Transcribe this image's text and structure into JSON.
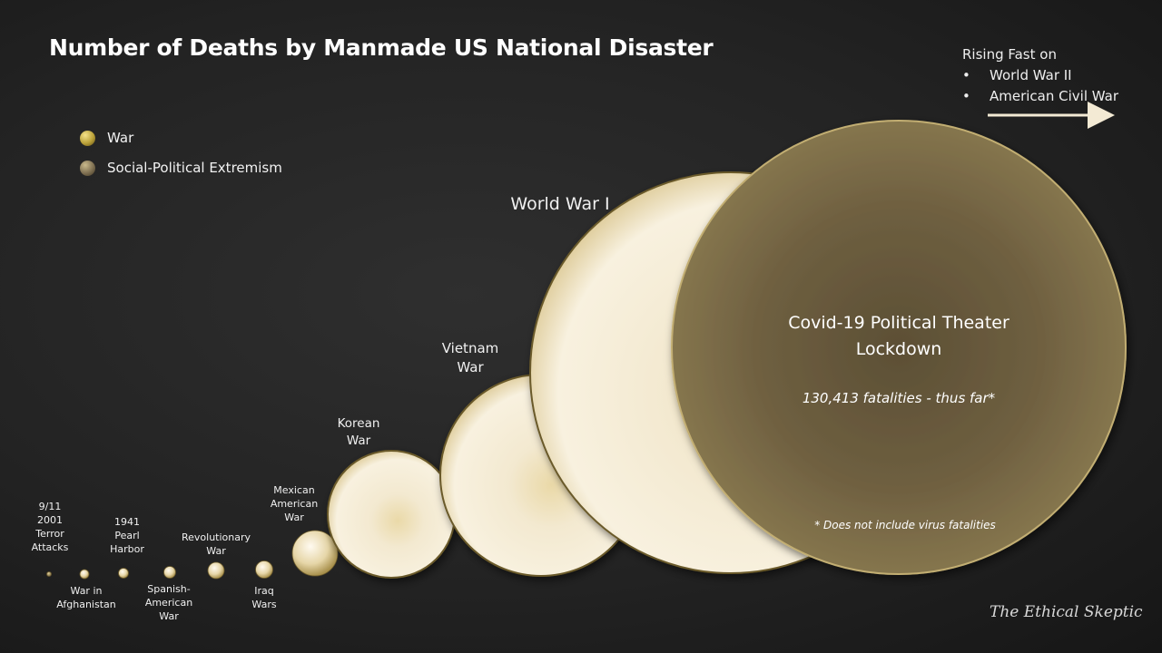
{
  "title": "Number of Deaths by Manmade US National Disaster",
  "legend": [
    {
      "label": "War",
      "color": "#b9a038"
    },
    {
      "label": "Social-Political Extremism",
      "color": "#7f7052"
    }
  ],
  "rising": {
    "title": "Rising Fast on",
    "items": [
      "World War II",
      "American Civil War"
    ],
    "bullet": "•"
  },
  "credit": "The Ethical Skeptic",
  "colors": {
    "war_light": "#fbf6ea",
    "war_mid": "#f0e4c6",
    "war_dark": "#e0cc96",
    "war_rim": "#6b5a2a",
    "extremism_center": "#5e5136",
    "extremism_edge": "#8a7a52",
    "extremism_rim": "#c2ae72"
  },
  "chart_data": {
    "type": "bubble",
    "title": "Number of Deaths by Manmade US National Disaster",
    "series": [
      {
        "label_lines": [
          "9/11",
          "2001",
          "Terror",
          "Attacks"
        ],
        "category": "Social-Political Extremism",
        "label_pos": "above"
      },
      {
        "label_lines": [
          "War in",
          "Afghanistan"
        ],
        "category": "War",
        "label_pos": "below"
      },
      {
        "label_lines": [
          "1941",
          "Pearl",
          "Harbor"
        ],
        "category": "War",
        "label_pos": "above"
      },
      {
        "label_lines": [
          "Spanish-",
          "American",
          "War"
        ],
        "category": "War",
        "label_pos": "below"
      },
      {
        "label_lines": [
          "Revolutionary",
          "War"
        ],
        "category": "War",
        "label_pos": "above"
      },
      {
        "label_lines": [
          "Iraq",
          "Wars"
        ],
        "category": "War",
        "label_pos": "below"
      },
      {
        "label_lines": [
          "Mexican",
          "American",
          "War"
        ],
        "category": "War",
        "label_pos": "above"
      },
      {
        "label_lines": [
          "Korean",
          "War"
        ],
        "category": "War",
        "label_pos": "above"
      },
      {
        "label_lines": [
          "Vietnam",
          "War"
        ],
        "category": "War",
        "label_pos": "above"
      },
      {
        "label_lines": [
          "World War I"
        ],
        "category": "War",
        "label_pos": "above"
      },
      {
        "label_lines": [
          "Covid-19 Political Theater",
          "Lockdown"
        ],
        "category": "Social-Political Extremism",
        "label_pos": "inside",
        "value_text": "130,413 fatalities - thus far*",
        "footnote": "* Does not include virus fatalities"
      }
    ]
  }
}
